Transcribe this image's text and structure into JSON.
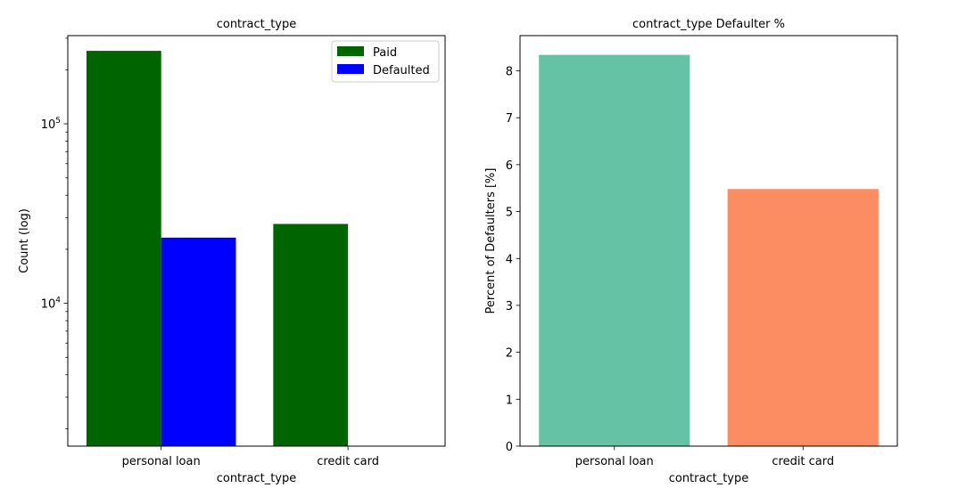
{
  "chart_data": [
    {
      "type": "bar",
      "title": "contract_type",
      "xlabel": "contract_type",
      "ylabel": "Count (log)",
      "yscale": "log",
      "ylim": [
        1600,
        310000
      ],
      "categories": [
        "personal loan",
        "credit card"
      ],
      "series": [
        {
          "name": "Paid",
          "color": "#006400",
          "values": [
            255011,
            27675
          ]
        },
        {
          "name": "Defaulted",
          "color": "#0000ff",
          "values": [
            23221,
            1604
          ]
        }
      ],
      "yticks": [
        {
          "value": 10000,
          "base": "10",
          "exp": "4"
        },
        {
          "value": 100000,
          "base": "10",
          "exp": "5"
        }
      ],
      "legend": {
        "position": "top-right"
      },
      "grid": false
    },
    {
      "type": "bar",
      "title": "contract_type Defaulter %",
      "xlabel": "contract_type",
      "ylabel": "Percent of Defaulters [%]",
      "ylim": [
        0,
        8.75
      ],
      "categories": [
        "personal loan",
        "credit card"
      ],
      "values": [
        8.34,
        5.48
      ],
      "colors": [
        "#66c2a5",
        "#fc8d62"
      ],
      "yticks": [
        0,
        1,
        2,
        3,
        4,
        5,
        6,
        7,
        8
      ],
      "grid": false
    }
  ]
}
